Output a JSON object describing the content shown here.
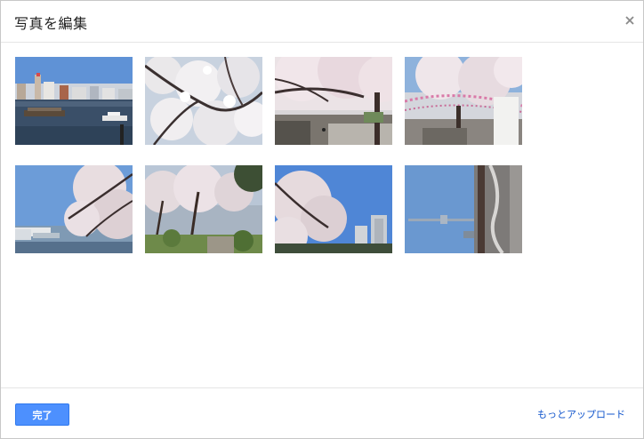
{
  "dialog": {
    "title": "写真を編集",
    "close_icon": "close-icon"
  },
  "photos": [
    {
      "name": "photo-river-cityscape",
      "scene": "river-boats"
    },
    {
      "name": "photo-cherry-blossoms-closeup",
      "scene": "blossom-closeup"
    },
    {
      "name": "photo-cherry-tree-path",
      "scene": "tree-path"
    },
    {
      "name": "photo-cherry-lanterns",
      "scene": "lanterns"
    },
    {
      "name": "photo-riverside-cherry",
      "scene": "riverside"
    },
    {
      "name": "photo-park-cherry",
      "scene": "park"
    },
    {
      "name": "photo-cherry-buildings",
      "scene": "buildings"
    },
    {
      "name": "photo-skytree-rotated",
      "scene": "skytree"
    }
  ],
  "footer": {
    "done_label": "完了",
    "upload_more_label": "もっとアップロード"
  },
  "colors": {
    "accent": "#4d90fe",
    "link": "#1155cc"
  }
}
